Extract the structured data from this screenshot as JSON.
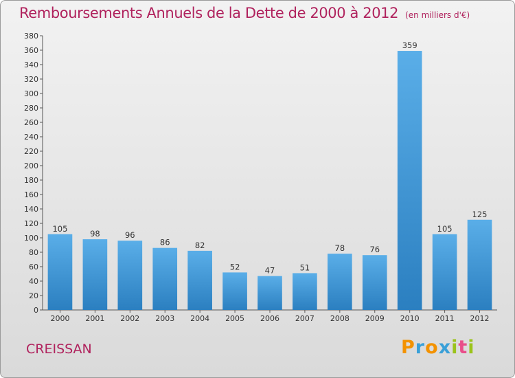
{
  "header": {
    "title": "Remboursements Annuels de la Dette de 2000 à 2012",
    "unit": "(en milliers d'€)"
  },
  "footer": {
    "commune": "CREISSAN",
    "logo": {
      "text": "Proxiti",
      "letters": [
        "P",
        "r",
        "o",
        "x",
        "i",
        "t",
        "i"
      ],
      "colors": [
        "#f39200",
        "#3aa0d8",
        "#f39200",
        "#3aa0d8",
        "#9bc31b",
        "#e94e8a",
        "#9bc31b"
      ]
    }
  },
  "colors": {
    "title": "#b0225d",
    "bar_light": "#5aaee8",
    "bar_dark": "#2b7fc0",
    "axis": "#555555",
    "grid": "#c8c8c8"
  },
  "chart_data": {
    "type": "bar",
    "title": "Remboursements Annuels de la Dette de 2000 à 2012",
    "subtitle": "(en milliers d'€)",
    "xlabel": "",
    "ylabel": "",
    "categories": [
      "2000",
      "2001",
      "2002",
      "2003",
      "2004",
      "2005",
      "2006",
      "2007",
      "2008",
      "2009",
      "2010",
      "2011",
      "2012"
    ],
    "values": [
      105,
      98,
      96,
      86,
      82,
      52,
      47,
      51,
      78,
      76,
      359,
      105,
      125
    ],
    "data_labels": [
      "105",
      "98",
      "96",
      "86",
      "82",
      "52",
      "47",
      "51",
      "78",
      "76",
      "359",
      "105",
      "125"
    ],
    "ylim": [
      0,
      380
    ],
    "yticks": [
      0,
      20,
      40,
      60,
      80,
      100,
      120,
      140,
      160,
      180,
      200,
      220,
      240,
      260,
      280,
      300,
      320,
      340,
      360,
      380
    ],
    "grid": false,
    "legend": "none"
  }
}
